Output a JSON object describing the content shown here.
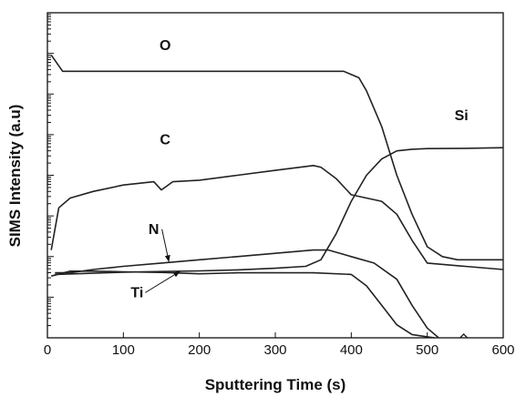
{
  "chart_data": {
    "type": "line",
    "xlabel": "Sputtering Time (s)",
    "ylabel": "SIMS Intensity (a.u)",
    "xlim": [
      0,
      600
    ],
    "ylim": [
      0,
      100
    ],
    "x_ticks": [
      0,
      100,
      200,
      300,
      400,
      500,
      600
    ],
    "x_tick_labels": [
      "0",
      "100",
      "200",
      "300",
      "400",
      "500",
      "600"
    ],
    "y_scale": "log",
    "y_tick_labels_shown": false,
    "grid": false,
    "legend": "none",
    "series": [
      {
        "name": "O",
        "x": [
          5,
          20,
          50,
          100,
          150,
          200,
          250,
          300,
          350,
          390,
          410,
          420,
          440,
          460,
          480,
          500,
          520,
          540,
          560,
          600
        ],
        "y": [
          87,
          82,
          82,
          82,
          82,
          82,
          82,
          82,
          82,
          82,
          80,
          76,
          65,
          50,
          38,
          28,
          25,
          24,
          24,
          24
        ]
      },
      {
        "name": "C",
        "x": [
          5,
          15,
          30,
          60,
          100,
          140,
          150,
          165,
          200,
          250,
          300,
          350,
          360,
          380,
          400,
          420,
          440,
          460,
          480,
          500,
          550,
          600
        ],
        "y": [
          27,
          40,
          43,
          45,
          47,
          48,
          45.5,
          48,
          48.5,
          50,
          51.5,
          53,
          52.5,
          49,
          44,
          43,
          42,
          38,
          30,
          23,
          22,
          21
        ]
      },
      {
        "name": "N",
        "x": [
          10,
          30,
          60,
          100,
          150,
          200,
          250,
          300,
          350,
          370,
          400,
          430,
          460,
          480,
          500,
          515
        ],
        "y": [
          20,
          20,
          21,
          22,
          23,
          24,
          25,
          26,
          27,
          27,
          25,
          23,
          18,
          10,
          3,
          0
        ]
      },
      {
        "name": "Ti",
        "x": [
          5,
          30,
          60,
          100,
          150,
          200,
          250,
          300,
          350,
          400,
          420,
          440,
          460,
          480,
          500,
          510
        ],
        "y": [
          19,
          20.5,
          20.5,
          20.3,
          20.1,
          19.7,
          20,
          20,
          20,
          19.5,
          16,
          10,
          4,
          1,
          0.3,
          0
        ]
      },
      {
        "name": "Si",
        "x": [
          10,
          50,
          100,
          150,
          200,
          250,
          300,
          340,
          360,
          380,
          400,
          420,
          440,
          460,
          480,
          500,
          550,
          600
        ],
        "y": [
          19.5,
          19.8,
          20.2,
          20.4,
          20.6,
          20.9,
          21.4,
          22,
          24,
          32,
          42,
          50,
          55,
          57.5,
          58,
          58.2,
          58.3,
          58.5
        ]
      }
    ],
    "annotations": [
      {
        "text": "O",
        "x": 155,
        "y": 88.5
      },
      {
        "text": "C",
        "x": 155,
        "y": 59.5
      },
      {
        "text": "Si",
        "x": 545,
        "y": 67
      },
      {
        "text": "N",
        "x": 140,
        "y": 32,
        "arrow_to": [
          160,
          23.3
        ]
      },
      {
        "text": "Ti",
        "x": 118,
        "y": 12.5,
        "arrow_to": [
          175,
          20.5
        ]
      }
    ]
  }
}
